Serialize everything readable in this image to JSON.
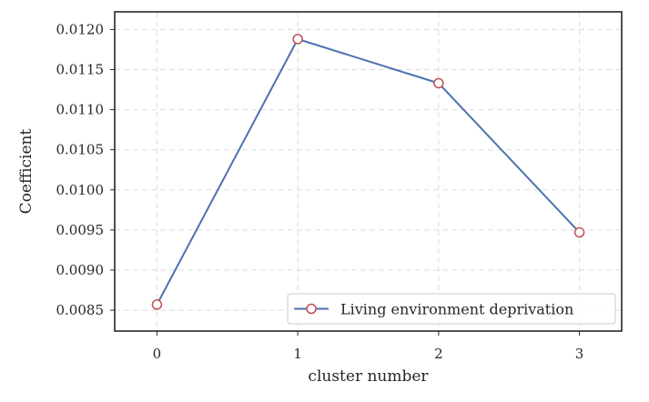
{
  "chart_data": {
    "type": "line",
    "xlabel": "cluster number",
    "ylabel": "Coefficient",
    "x": [
      0,
      1,
      2,
      3
    ],
    "xticks": [
      "0",
      "1",
      "2",
      "3"
    ],
    "yticks": [
      "0.0085",
      "0.0090",
      "0.0095",
      "0.0100",
      "0.0105",
      "0.0110",
      "0.0115",
      "0.0120"
    ],
    "ytick_values": [
      0.0085,
      0.009,
      0.0095,
      0.01,
      0.0105,
      0.011,
      0.0115,
      0.012
    ],
    "xlim": [
      -0.3,
      3.3
    ],
    "ylim": [
      0.00824,
      0.01222
    ],
    "grid": true,
    "legend_position": "lower-right",
    "series": [
      {
        "name": "Living environment deprivation",
        "values": [
          0.00857,
          0.01188,
          0.01133,
          0.00947
        ],
        "line_color": "#4c72b0",
        "marker_edge_color": "#c44e52",
        "marker_face_color": "#ffffff"
      }
    ]
  }
}
